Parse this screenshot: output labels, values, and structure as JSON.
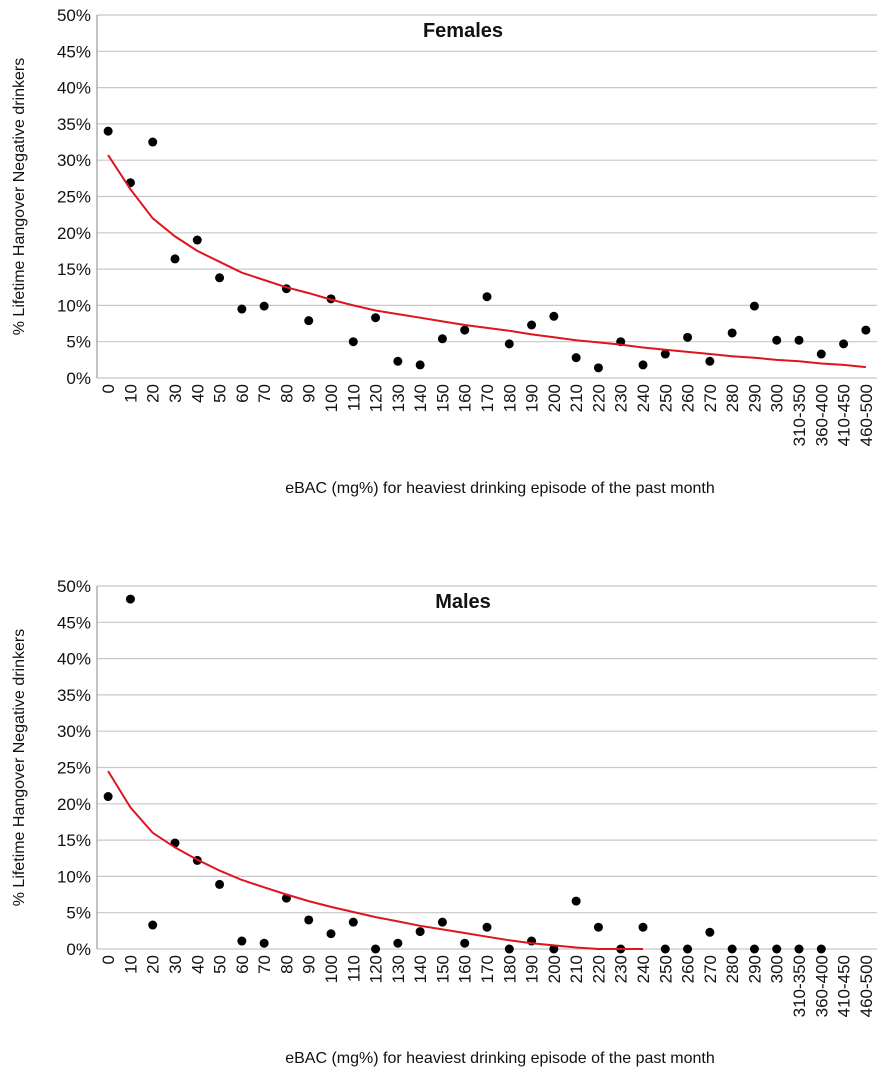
{
  "chart_data": [
    {
      "type": "scatter",
      "title": "Females",
      "x_label": "eBAC (mg%) for heaviest drinking episode of the past month",
      "y_label": "% Lifetime Hangover Negative drinkers",
      "categories": [
        "0",
        "10",
        "20",
        "30",
        "40",
        "50",
        "60",
        "70",
        "80",
        "90",
        "100",
        "110",
        "120",
        "130",
        "140",
        "150",
        "160",
        "170",
        "180",
        "190",
        "200",
        "210",
        "220",
        "230",
        "240",
        "250",
        "260",
        "270",
        "280",
        "290",
        "300",
        "310-350",
        "360-400",
        "410-450",
        "460-500"
      ],
      "ylim": [
        0,
        50
      ],
      "yticks": [
        {
          "value": 0,
          "label": "0%"
        },
        {
          "value": 5,
          "label": "5%"
        },
        {
          "value": 10,
          "label": "10%"
        },
        {
          "value": 15,
          "label": "15%"
        },
        {
          "value": 20,
          "label": "20%"
        },
        {
          "value": 25,
          "label": "25%"
        },
        {
          "value": 30,
          "label": "30%"
        },
        {
          "value": 35,
          "label": "35%"
        },
        {
          "value": 40,
          "label": "40%"
        },
        {
          "value": 45,
          "label": "45%"
        },
        {
          "value": 50,
          "label": "50%"
        }
      ],
      "grid": true,
      "series": [
        {
          "type": "scatter",
          "color": "#000000",
          "values": [
            34.0,
            26.9,
            32.5,
            16.4,
            19.0,
            13.8,
            9.5,
            9.9,
            12.3,
            7.9,
            10.9,
            5.0,
            8.3,
            2.3,
            1.8,
            5.4,
            6.6,
            11.2,
            4.7,
            7.3,
            8.5,
            2.8,
            1.4,
            5.0,
            1.8,
            3.3,
            5.6,
            2.3,
            6.2,
            9.9,
            5.2,
            5.2,
            3.3,
            4.7,
            6.6
          ]
        },
        {
          "type": "line",
          "color": "#e0141e",
          "values": [
            30.7,
            26,
            22,
            19.5,
            17.5,
            16,
            14.5,
            13.5,
            12.5,
            11.7,
            10.8,
            10,
            9.3,
            8.8,
            8.3,
            7.8,
            7.3,
            6.9,
            6.5,
            6,
            5.6,
            5.2,
            4.9,
            4.6,
            4.2,
            3.9,
            3.6,
            3.3,
            3,
            2.8,
            2.5,
            2.3,
            2.0,
            1.8,
            1.5
          ]
        }
      ]
    },
    {
      "type": "scatter",
      "title": "Males",
      "x_label": "eBAC (mg%) for heaviest drinking episode of the past month",
      "y_label": "% Lifetime Hangover Negative drinkers",
      "categories": [
        "0",
        "10",
        "20",
        "30",
        "40",
        "50",
        "60",
        "70",
        "80",
        "90",
        "100",
        "110",
        "120",
        "130",
        "140",
        "150",
        "160",
        "170",
        "180",
        "190",
        "200",
        "210",
        "220",
        "230",
        "240",
        "250",
        "260",
        "270",
        "280",
        "290",
        "300",
        "310-350",
        "360-400",
        "410-450",
        "460-500"
      ],
      "ylim": [
        0,
        50
      ],
      "yticks": [
        {
          "value": 0,
          "label": "0%"
        },
        {
          "value": 5,
          "label": "5%"
        },
        {
          "value": 10,
          "label": "10%"
        },
        {
          "value": 15,
          "label": "15%"
        },
        {
          "value": 20,
          "label": "20%"
        },
        {
          "value": 25,
          "label": "25%"
        },
        {
          "value": 30,
          "label": "30%"
        },
        {
          "value": 35,
          "label": "35%"
        },
        {
          "value": 40,
          "label": "40%"
        },
        {
          "value": 45,
          "label": "45%"
        },
        {
          "value": 50,
          "label": "50%"
        }
      ],
      "grid": true,
      "series": [
        {
          "type": "scatter",
          "color": "#000000",
          "values": [
            21.0,
            48.2,
            3.3,
            14.6,
            12.2,
            8.9,
            1.1,
            0.8,
            7.0,
            4.0,
            2.1,
            3.7,
            0,
            0.8,
            2.4,
            3.7,
            0.8,
            3.0,
            0,
            1.1,
            0,
            6.6,
            3.0,
            0,
            3.0,
            0,
            0,
            2.3,
            0,
            0,
            0,
            0,
            0,
            null,
            null
          ]
        },
        {
          "type": "line",
          "color": "#e0141e",
          "values": [
            24.5,
            19.5,
            16,
            14,
            12.3,
            10.8,
            9.5,
            8.5,
            7.5,
            6.6,
            5.8,
            5.1,
            4.4,
            3.8,
            3.2,
            2.7,
            2.2,
            1.7,
            1.2,
            0.8,
            0.5,
            0.2,
            0,
            0,
            0,
            null,
            null,
            null,
            null,
            null,
            null,
            null,
            null,
            null,
            null
          ]
        }
      ]
    }
  ]
}
